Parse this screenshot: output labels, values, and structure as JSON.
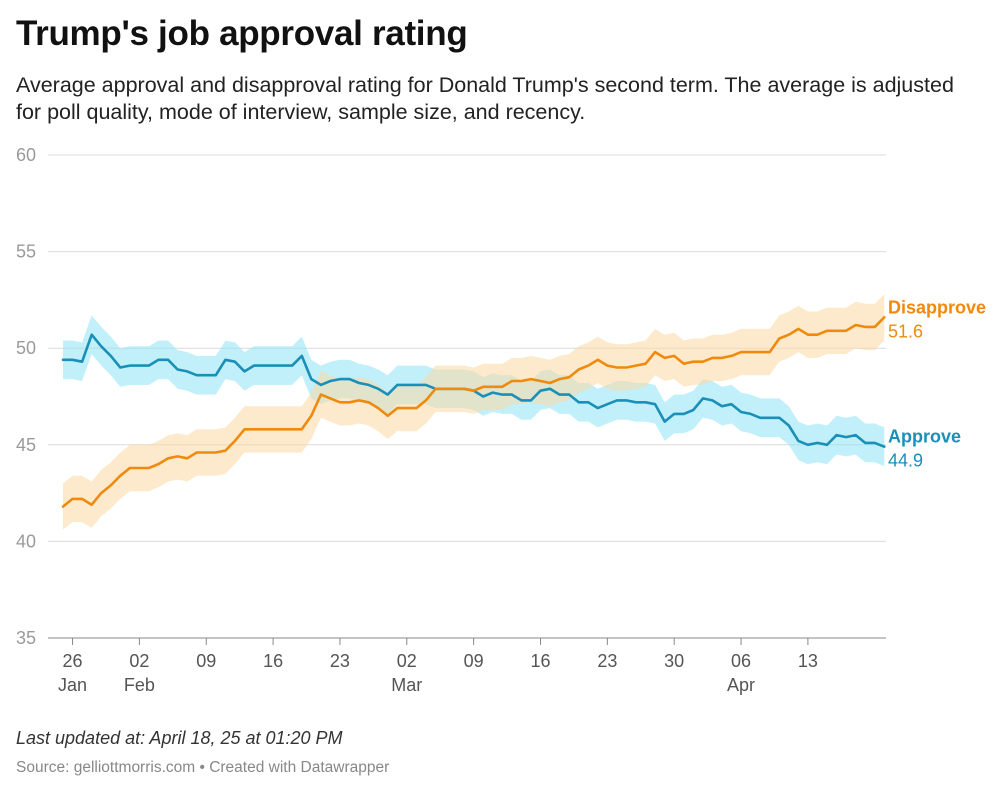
{
  "title": "Trump's job approval rating",
  "subtitle": "Average approval and disapproval rating for Donald Trump's second term. The average is adjusted for poll quality, mode of interview, sample size, and recency.",
  "footer": {
    "updated": "Last updated at: April 18, 25 at 01:20 PM",
    "source": "Source: gelliottmorris.com • Created with Datawrapper"
  },
  "chart_data": {
    "type": "line",
    "title": "Trump's job approval rating",
    "xlabel": "",
    "ylabel": "",
    "ylim": [
      35,
      60
    ],
    "yticks": [
      35,
      40,
      45,
      50,
      55,
      60
    ],
    "xlim_day": [
      0,
      87
    ],
    "xticks": [
      {
        "day": 1,
        "label": "26",
        "month": "Jan"
      },
      {
        "day": 8,
        "label": "02",
        "month": "Feb"
      },
      {
        "day": 15,
        "label": "09",
        "month": ""
      },
      {
        "day": 22,
        "label": "16",
        "month": ""
      },
      {
        "day": 29,
        "label": "23",
        "month": ""
      },
      {
        "day": 36,
        "label": "02",
        "month": "Mar"
      },
      {
        "day": 43,
        "label": "09",
        "month": ""
      },
      {
        "day": 50,
        "label": "16",
        "month": ""
      },
      {
        "day": 57,
        "label": "23",
        "month": ""
      },
      {
        "day": 64,
        "label": "30",
        "month": ""
      },
      {
        "day": 71,
        "label": "06",
        "month": "Apr"
      },
      {
        "day": 78,
        "label": "13",
        "month": ""
      }
    ],
    "grid": true,
    "day_zero": "January 25",
    "series": [
      {
        "name": "Approve",
        "final_label": "44.9",
        "color": "#1a8fb8",
        "band_color": "#8ee3f5",
        "band_halfwidth": 1.0,
        "points": [
          [
            0,
            49.4
          ],
          [
            1,
            49.4
          ],
          [
            2,
            49.3
          ],
          [
            3,
            50.7
          ],
          [
            4,
            50.1
          ],
          [
            5,
            49.6
          ],
          [
            6,
            49.0
          ],
          [
            7,
            49.1
          ],
          [
            8,
            49.1
          ],
          [
            9,
            49.1
          ],
          [
            10,
            49.4
          ],
          [
            11,
            49.4
          ],
          [
            12,
            48.9
          ],
          [
            13,
            48.8
          ],
          [
            14,
            48.6
          ],
          [
            15,
            48.6
          ],
          [
            16,
            48.6
          ],
          [
            17,
            49.4
          ],
          [
            18,
            49.3
          ],
          [
            19,
            48.8
          ],
          [
            20,
            49.1
          ],
          [
            21,
            49.1
          ],
          [
            22,
            49.1
          ],
          [
            23,
            49.1
          ],
          [
            24,
            49.1
          ],
          [
            25,
            49.6
          ],
          [
            26,
            48.4
          ],
          [
            27,
            48.1
          ],
          [
            28,
            48.3
          ],
          [
            29,
            48.4
          ],
          [
            30,
            48.4
          ],
          [
            31,
            48.2
          ],
          [
            32,
            48.1
          ],
          [
            33,
            47.9
          ],
          [
            34,
            47.6
          ],
          [
            35,
            48.1
          ],
          [
            36,
            48.1
          ],
          [
            37,
            48.1
          ],
          [
            38,
            48.1
          ],
          [
            39,
            47.9
          ],
          [
            40,
            47.9
          ],
          [
            41,
            47.9
          ],
          [
            42,
            47.9
          ],
          [
            43,
            47.8
          ],
          [
            44,
            47.5
          ],
          [
            45,
            47.7
          ],
          [
            46,
            47.6
          ],
          [
            47,
            47.6
          ],
          [
            48,
            47.3
          ],
          [
            49,
            47.3
          ],
          [
            50,
            47.8
          ],
          [
            51,
            47.9
          ],
          [
            52,
            47.6
          ],
          [
            53,
            47.6
          ],
          [
            54,
            47.2
          ],
          [
            55,
            47.2
          ],
          [
            56,
            46.9
          ],
          [
            57,
            47.1
          ],
          [
            58,
            47.3
          ],
          [
            59,
            47.3
          ],
          [
            60,
            47.2
          ],
          [
            61,
            47.2
          ],
          [
            62,
            47.1
          ],
          [
            63,
            46.2
          ],
          [
            64,
            46.6
          ],
          [
            65,
            46.6
          ],
          [
            66,
            46.8
          ],
          [
            67,
            47.4
          ],
          [
            68,
            47.3
          ],
          [
            69,
            47.0
          ],
          [
            70,
            47.1
          ],
          [
            71,
            46.7
          ],
          [
            72,
            46.6
          ],
          [
            73,
            46.4
          ],
          [
            74,
            46.4
          ],
          [
            75,
            46.4
          ],
          [
            76,
            46.0
          ],
          [
            77,
            45.2
          ],
          [
            78,
            45.0
          ],
          [
            79,
            45.1
          ],
          [
            80,
            45.0
          ],
          [
            81,
            45.5
          ],
          [
            82,
            45.4
          ],
          [
            83,
            45.5
          ],
          [
            84,
            45.1
          ],
          [
            85,
            45.1
          ],
          [
            86,
            44.9
          ]
        ]
      },
      {
        "name": "Disapprove",
        "final_label": "51.6",
        "color": "#ef8a0c",
        "band_color": "#fcd9a4",
        "band_halfwidth": 1.2,
        "points": [
          [
            0,
            41.8
          ],
          [
            1,
            42.2
          ],
          [
            2,
            42.2
          ],
          [
            3,
            41.9
          ],
          [
            4,
            42.5
          ],
          [
            5,
            42.9
          ],
          [
            6,
            43.4
          ],
          [
            7,
            43.8
          ],
          [
            8,
            43.8
          ],
          [
            9,
            43.8
          ],
          [
            10,
            44.0
          ],
          [
            11,
            44.3
          ],
          [
            12,
            44.4
          ],
          [
            13,
            44.3
          ],
          [
            14,
            44.6
          ],
          [
            15,
            44.6
          ],
          [
            16,
            44.6
          ],
          [
            17,
            44.7
          ],
          [
            18,
            45.2
          ],
          [
            19,
            45.8
          ],
          [
            20,
            45.8
          ],
          [
            21,
            45.8
          ],
          [
            22,
            45.8
          ],
          [
            23,
            45.8
          ],
          [
            24,
            45.8
          ],
          [
            25,
            45.8
          ],
          [
            26,
            46.5
          ],
          [
            27,
            47.6
          ],
          [
            28,
            47.4
          ],
          [
            29,
            47.2
          ],
          [
            30,
            47.2
          ],
          [
            31,
            47.3
          ],
          [
            32,
            47.2
          ],
          [
            33,
            46.9
          ],
          [
            34,
            46.5
          ],
          [
            35,
            46.9
          ],
          [
            36,
            46.9
          ],
          [
            37,
            46.9
          ],
          [
            38,
            47.3
          ],
          [
            39,
            47.9
          ],
          [
            40,
            47.9
          ],
          [
            41,
            47.9
          ],
          [
            42,
            47.9
          ],
          [
            43,
            47.8
          ],
          [
            44,
            48.0
          ],
          [
            45,
            48.0
          ],
          [
            46,
            48.0
          ],
          [
            47,
            48.3
          ],
          [
            48,
            48.3
          ],
          [
            49,
            48.4
          ],
          [
            50,
            48.3
          ],
          [
            51,
            48.2
          ],
          [
            52,
            48.4
          ],
          [
            53,
            48.5
          ],
          [
            54,
            48.9
          ],
          [
            55,
            49.1
          ],
          [
            56,
            49.4
          ],
          [
            57,
            49.1
          ],
          [
            58,
            49.0
          ],
          [
            59,
            49.0
          ],
          [
            60,
            49.1
          ],
          [
            61,
            49.2
          ],
          [
            62,
            49.8
          ],
          [
            63,
            49.5
          ],
          [
            64,
            49.6
          ],
          [
            65,
            49.2
          ],
          [
            66,
            49.3
          ],
          [
            67,
            49.3
          ],
          [
            68,
            49.5
          ],
          [
            69,
            49.5
          ],
          [
            70,
            49.6
          ],
          [
            71,
            49.8
          ],
          [
            72,
            49.8
          ],
          [
            73,
            49.8
          ],
          [
            74,
            49.8
          ],
          [
            75,
            50.5
          ],
          [
            76,
            50.7
          ],
          [
            77,
            51.0
          ],
          [
            78,
            50.7
          ],
          [
            79,
            50.7
          ],
          [
            80,
            50.9
          ],
          [
            81,
            50.9
          ],
          [
            82,
            50.9
          ],
          [
            83,
            51.2
          ],
          [
            84,
            51.1
          ],
          [
            85,
            51.1
          ],
          [
            86,
            51.6
          ]
        ]
      }
    ]
  }
}
